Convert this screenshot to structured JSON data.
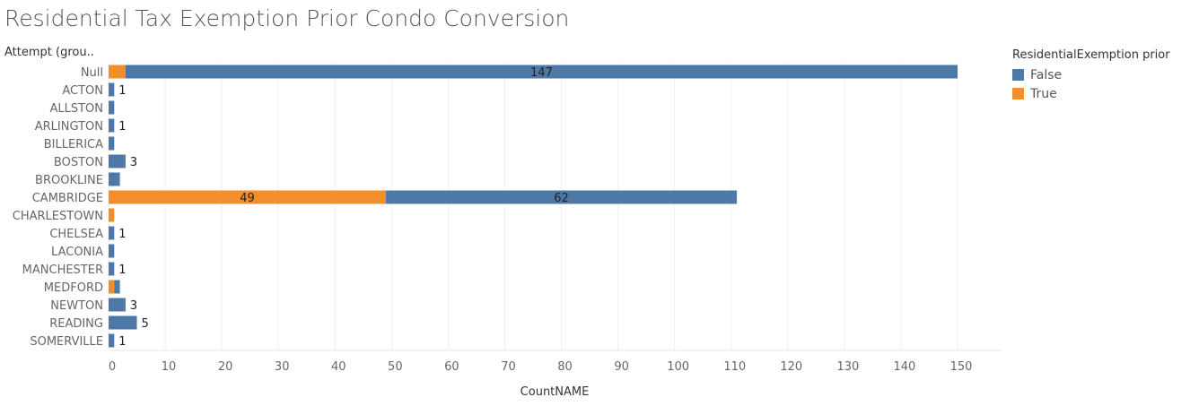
{
  "chart_data": {
    "type": "bar",
    "orientation": "horizontal",
    "stacked": true,
    "title": "Residential Tax Exemption Prior Condo Conversion",
    "row_header": "Attempt (grou..",
    "xlabel": "CountNAME",
    "ylabel": "",
    "xlim": [
      0,
      155
    ],
    "xticks": [
      0,
      10,
      20,
      30,
      40,
      50,
      60,
      70,
      80,
      90,
      100,
      110,
      120,
      130,
      140,
      150
    ],
    "grid": true,
    "legend": {
      "title": "ResidentialExemption prior",
      "position": "top-right",
      "entries": [
        {
          "name": "False",
          "color": "#4e79a7"
        },
        {
          "name": "True",
          "color": "#f28e2b"
        }
      ]
    },
    "categories": [
      "Null",
      "ACTON",
      "ALLSTON",
      "ARLINGTON",
      "BILLERICA",
      "BOSTON",
      "BROOKLINE",
      "CAMBRIDGE",
      "CHARLESTOWN",
      "CHELSEA",
      "LACONIA",
      "MANCHESTER",
      "MEDFORD",
      "NEWTON",
      "READING",
      "SOMERVILLE"
    ],
    "series": [
      {
        "name": "True",
        "color": "#f28e2b",
        "values": [
          3,
          0,
          0,
          0,
          0,
          0,
          0,
          49,
          1,
          0,
          0,
          0,
          1,
          0,
          0,
          0
        ]
      },
      {
        "name": "False",
        "color": "#4e79a7",
        "values": [
          147,
          1,
          1,
          1,
          1,
          3,
          2,
          62,
          0,
          1,
          1,
          1,
          1,
          3,
          5,
          1
        ]
      }
    ],
    "data_labels": [
      {
        "category": "Null",
        "series": "False",
        "text": "147",
        "placement": "inside"
      },
      {
        "category": "ACTON",
        "series": "False",
        "text": "1",
        "placement": "outside"
      },
      {
        "category": "ARLINGTON",
        "series": "False",
        "text": "1",
        "placement": "outside"
      },
      {
        "category": "BOSTON",
        "series": "False",
        "text": "3",
        "placement": "outside"
      },
      {
        "category": "CAMBRIDGE",
        "series": "True",
        "text": "49",
        "placement": "inside"
      },
      {
        "category": "CAMBRIDGE",
        "series": "False",
        "text": "62",
        "placement": "inside"
      },
      {
        "category": "CHELSEA",
        "series": "False",
        "text": "1",
        "placement": "outside"
      },
      {
        "category": "MANCHESTER",
        "series": "False",
        "text": "1",
        "placement": "outside"
      },
      {
        "category": "NEWTON",
        "series": "False",
        "text": "3",
        "placement": "outside"
      },
      {
        "category": "READING",
        "series": "False",
        "text": "5",
        "placement": "outside"
      },
      {
        "category": "SOMERVILLE",
        "series": "False",
        "text": "1",
        "placement": "outside"
      }
    ]
  }
}
